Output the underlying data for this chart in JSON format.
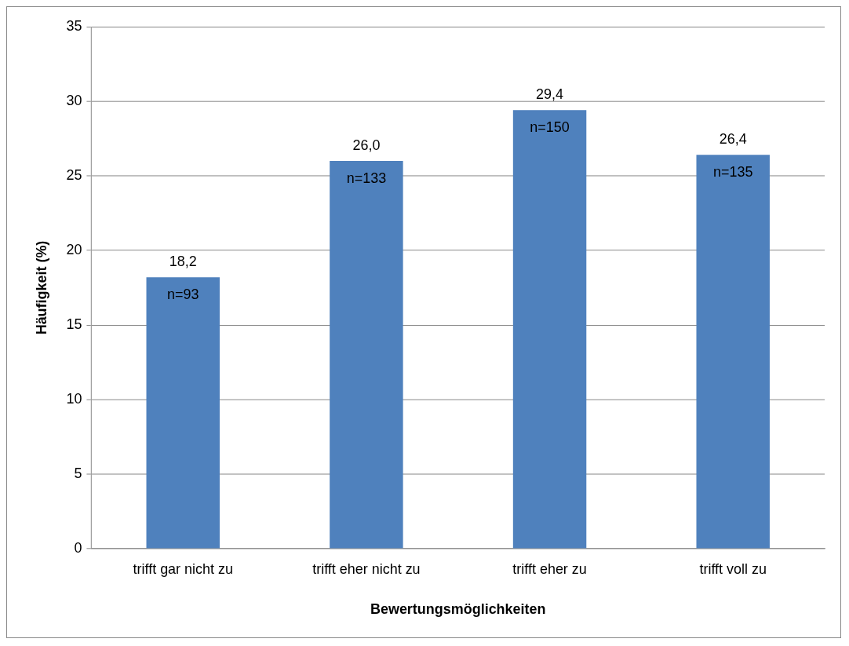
{
  "chart_data": {
    "type": "bar",
    "xlabel": "Bewertungsmöglichkeiten",
    "ylabel": "Häufigkeit (%)",
    "categories": [
      "trifft gar nicht zu",
      "trifft eher nicht zu",
      "trifft eher zu",
      "trifft voll zu"
    ],
    "values": [
      18.2,
      26.0,
      29.4,
      26.4
    ],
    "value_labels": [
      "18,2",
      "26,0",
      "29,4",
      "26,4"
    ],
    "color": "#4f81bd",
    "ylim": [
      0,
      35
    ],
    "yticks": [
      0,
      5,
      10,
      15,
      20,
      25,
      30,
      35
    ],
    "grid": "y",
    "legend": false,
    "annotations": [
      {
        "text": "n=93",
        "x": "trifft gar nicht zu",
        "y": 18.2
      },
      {
        "text": "n=133",
        "x": "trifft eher nicht zu",
        "y": 26.0
      },
      {
        "text": "n=150",
        "x": "trifft eher zu",
        "y": 29.4
      },
      {
        "text": "n=135",
        "x": "trifft voll zu",
        "y": 26.4
      }
    ]
  }
}
